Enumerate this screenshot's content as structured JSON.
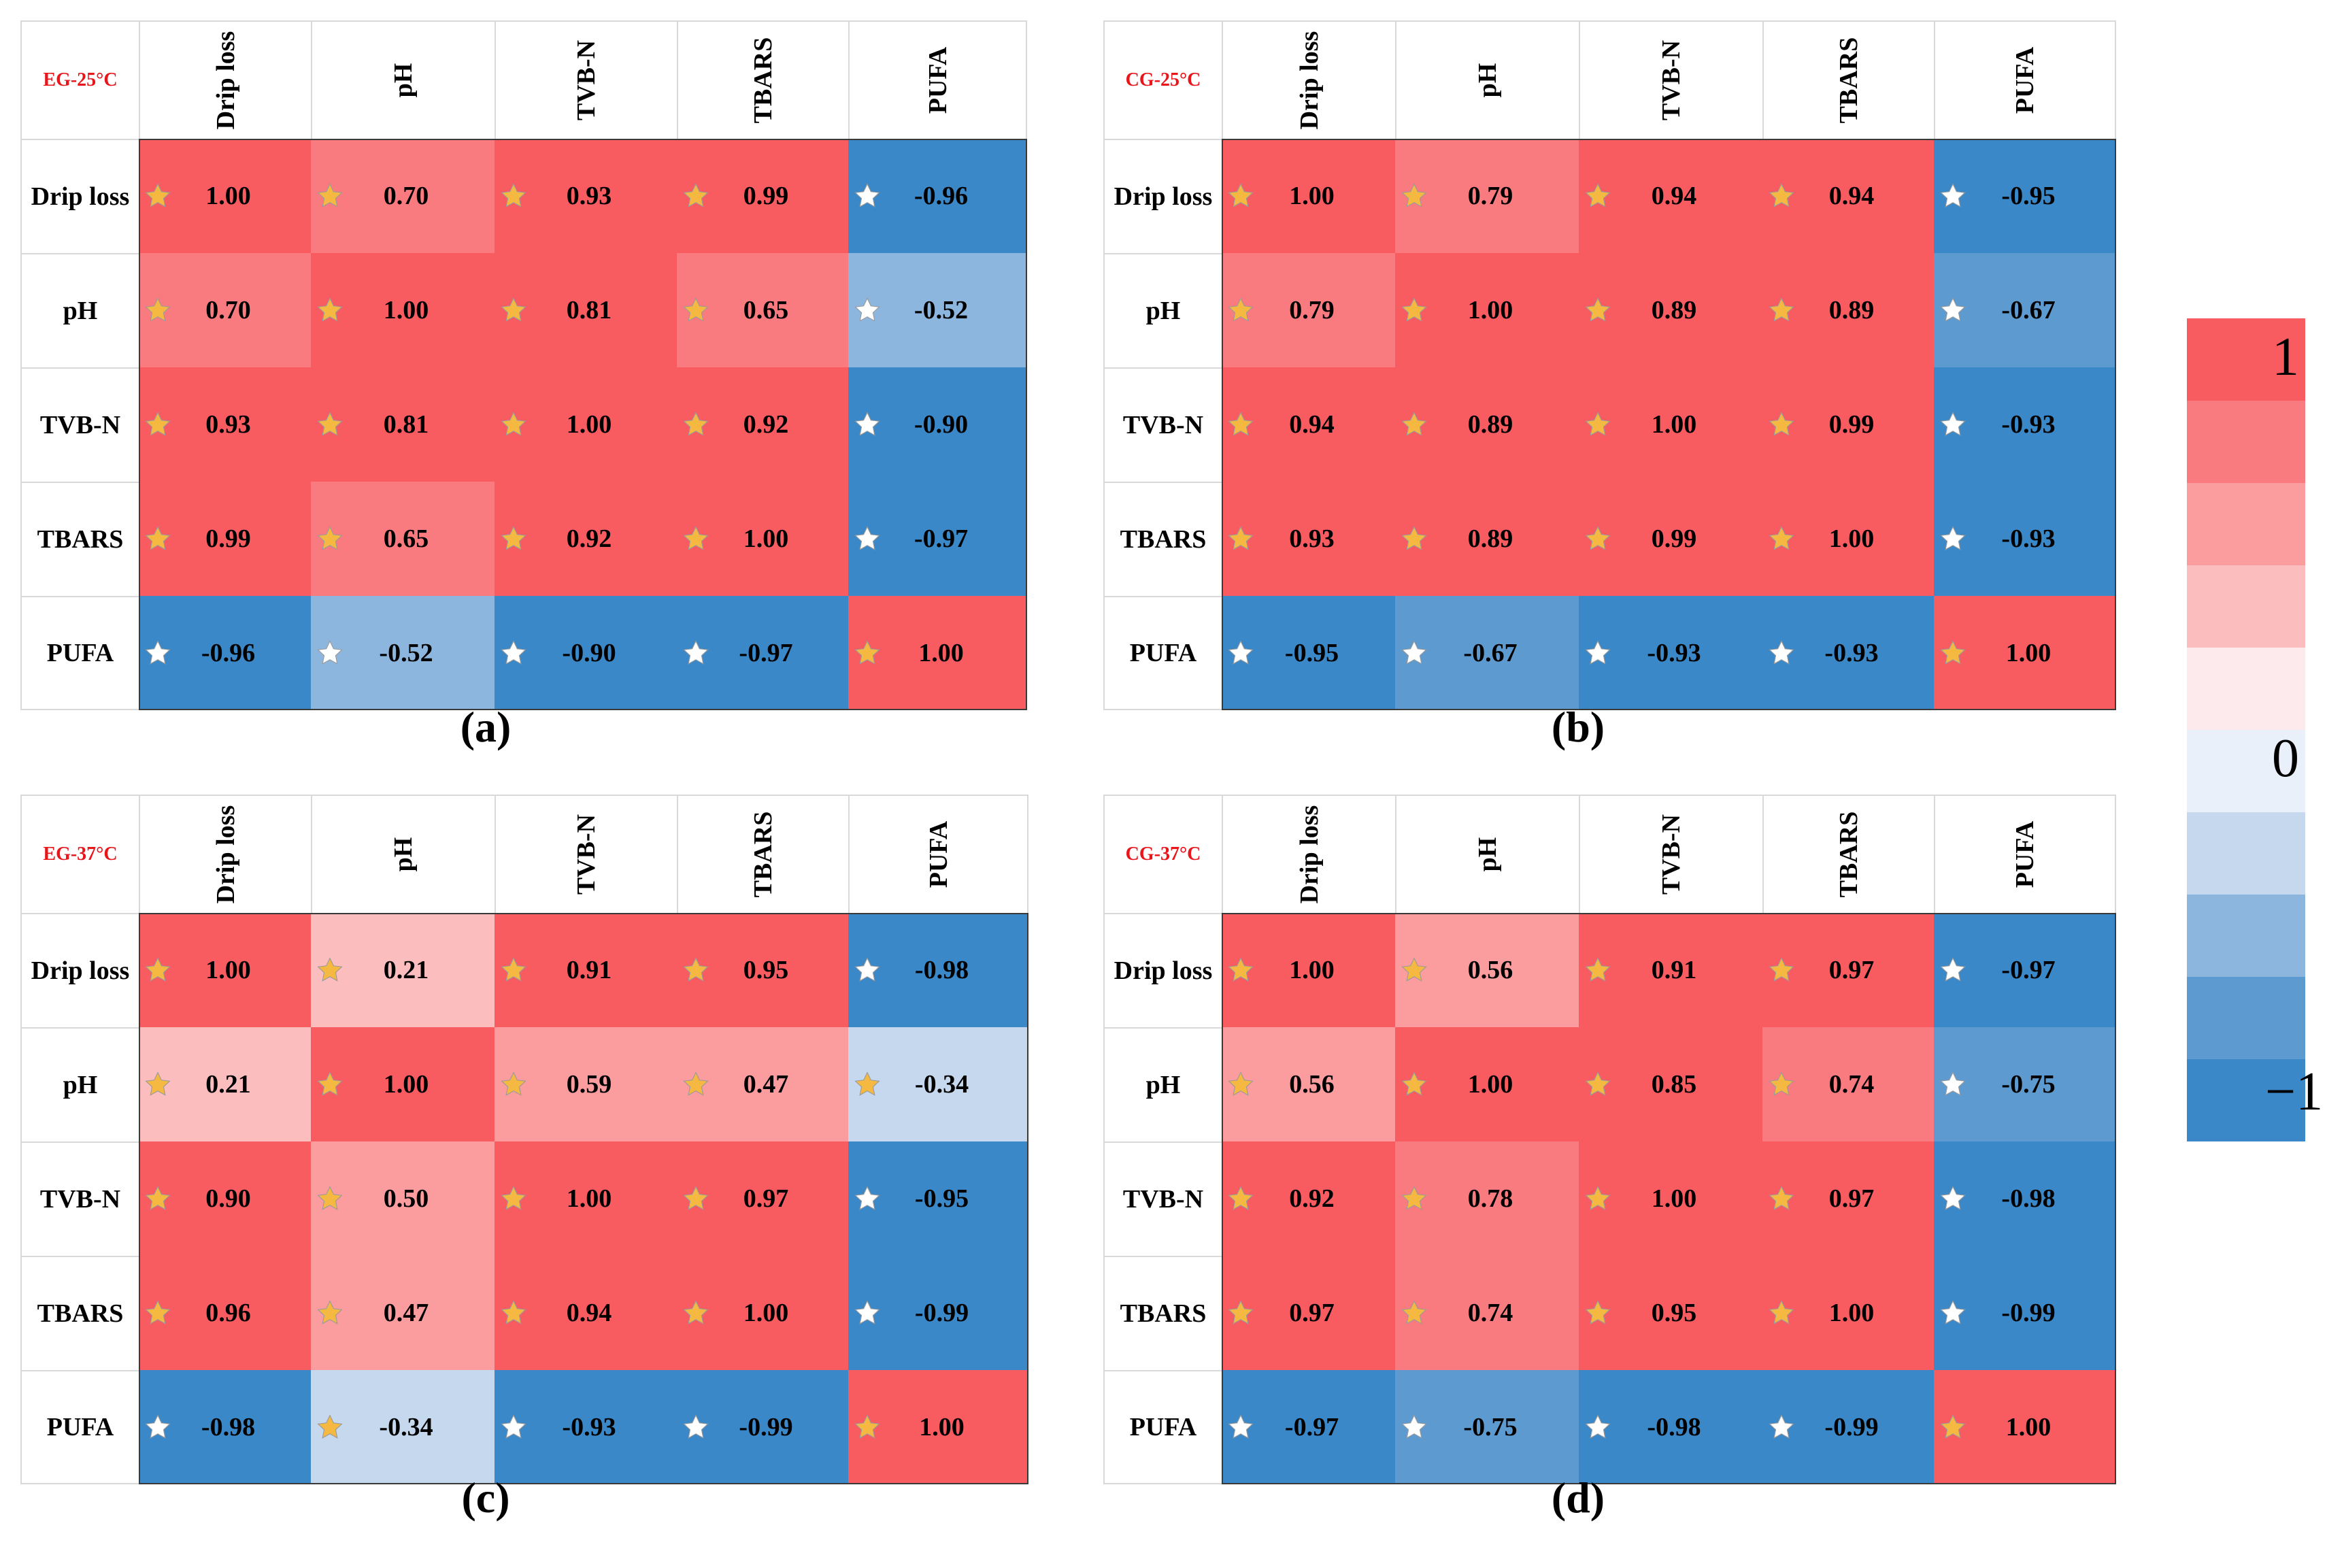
{
  "chart_data": [
    {
      "type": "heatmap",
      "panel_label": "(a)",
      "title": "EG-25°C",
      "columns": [
        "Drip loss",
        "pH",
        "TVB-N",
        "TBARS",
        "PUFA"
      ],
      "rows": [
        "Drip loss",
        "pH",
        "TVB-N",
        "TBARS",
        "PUFA"
      ],
      "values": [
        [
          1.0,
          0.7,
          0.93,
          0.99,
          -0.96
        ],
        [
          0.7,
          1.0,
          0.81,
          0.65,
          -0.52
        ],
        [
          0.93,
          0.81,
          1.0,
          0.92,
          -0.9
        ],
        [
          0.99,
          0.65,
          0.92,
          1.0,
          -0.97
        ],
        [
          -0.96,
          -0.52,
          -0.9,
          -0.97,
          1.0
        ]
      ],
      "labels": [
        [
          "1.00",
          "0.70",
          "0.93",
          "0.99",
          "-0.96"
        ],
        [
          "0.70",
          "1.00",
          "0.81",
          "0.65",
          "-0.52"
        ],
        [
          "0.93",
          "0.81",
          "1.00",
          "0.92",
          "-0.90"
        ],
        [
          "0.99",
          "0.65",
          "0.92",
          "1.00",
          "-0.97"
        ],
        [
          "-0.96",
          "-0.52",
          "-0.90",
          "-0.97",
          "1.00"
        ]
      ]
    },
    {
      "type": "heatmap",
      "panel_label": "(b)",
      "title": "CG-25°C",
      "columns": [
        "Drip loss",
        "pH",
        "TVB-N",
        "TBARS",
        "PUFA"
      ],
      "rows": [
        "Drip loss",
        "pH",
        "TVB-N",
        "TBARS",
        "PUFA"
      ],
      "values": [
        [
          1.0,
          0.79,
          0.94,
          0.94,
          -0.95
        ],
        [
          0.79,
          1.0,
          0.89,
          0.89,
          -0.67
        ],
        [
          0.94,
          0.89,
          1.0,
          0.99,
          -0.93
        ],
        [
          0.93,
          0.89,
          0.99,
          1.0,
          -0.93
        ],
        [
          -0.95,
          -0.67,
          -0.93,
          -0.93,
          1.0
        ]
      ],
      "labels": [
        [
          "1.00",
          "0.79",
          "0.94",
          "0.94",
          "-0.95"
        ],
        [
          "0.79",
          "1.00",
          "0.89",
          "0.89",
          "-0.67"
        ],
        [
          "0.94",
          "0.89",
          "1.00",
          "0.99",
          "-0.93"
        ],
        [
          "0.93",
          "0.89",
          "0.99",
          "1.00",
          "-0.93"
        ],
        [
          "-0.95",
          "-0.67",
          "-0.93",
          "-0.93",
          "1.00"
        ]
      ]
    },
    {
      "type": "heatmap",
      "panel_label": "(c)",
      "title": "EG-37°C",
      "columns": [
        "Drip loss",
        "pH",
        "TVB-N",
        "TBARS",
        "PUFA"
      ],
      "rows": [
        "Drip loss",
        "pH",
        "TVB-N",
        "TBARS",
        "PUFA"
      ],
      "values": [
        [
          1.0,
          0.21,
          0.91,
          0.95,
          -0.98
        ],
        [
          0.21,
          1.0,
          0.59,
          0.47,
          -0.34
        ],
        [
          0.9,
          0.5,
          1.0,
          0.97,
          -0.95
        ],
        [
          0.96,
          0.47,
          0.94,
          1.0,
          -0.99
        ],
        [
          -0.98,
          -0.34,
          -0.93,
          -0.99,
          1.0
        ]
      ],
      "labels": [
        [
          "1.00",
          "0.21",
          "0.91",
          "0.95",
          "-0.98"
        ],
        [
          "0.21",
          "1.00",
          "0.59",
          "0.47",
          "-0.34"
        ],
        [
          "0.90",
          "0.50",
          "1.00",
          "0.97",
          "-0.95"
        ],
        [
          "0.96",
          "0.47",
          "0.94",
          "1.00",
          "-0.99"
        ],
        [
          "-0.98",
          "-0.34",
          "-0.93",
          "-0.99",
          "1.00"
        ]
      ]
    },
    {
      "type": "heatmap",
      "panel_label": "(d)",
      "title": "CG-37°C",
      "columns": [
        "Drip loss",
        "pH",
        "TVB-N",
        "TBARS",
        "PUFA"
      ],
      "rows": [
        "Drip loss",
        "pH",
        "TVB-N",
        "TBARS",
        "PUFA"
      ],
      "values": [
        [
          1.0,
          0.56,
          0.91,
          0.97,
          -0.97
        ],
        [
          0.56,
          1.0,
          0.85,
          0.74,
          -0.75
        ],
        [
          0.92,
          0.78,
          1.0,
          0.97,
          -0.98
        ],
        [
          0.97,
          0.74,
          0.95,
          1.0,
          -0.99
        ],
        [
          -0.97,
          -0.75,
          -0.98,
          -0.99,
          1.0
        ]
      ],
      "labels": [
        [
          "1.00",
          "0.56",
          "0.91",
          "0.97",
          "-0.97"
        ],
        [
          "0.56",
          "1.00",
          "0.85",
          "0.74",
          "-0.75"
        ],
        [
          "0.92",
          "0.78",
          "1.00",
          "0.97",
          "-0.98"
        ],
        [
          "0.97",
          "0.74",
          "0.95",
          "1.00",
          "-0.99"
        ],
        [
          "-0.97",
          "-0.75",
          "-0.98",
          "-0.99",
          "1.00"
        ]
      ]
    }
  ],
  "legend": {
    "max_label": "1",
    "mid_label": "0",
    "min_label": "−1",
    "range": [
      -1,
      1
    ],
    "colors": [
      "#f85b60",
      "#fa7b7f",
      "#fb9c9f",
      "#fcbdbf",
      "#fdeaec",
      "#eaf0f9",
      "#c6d8ee",
      "#8cb6de",
      "#5d9ad0",
      "#3a88c8"
    ]
  },
  "colors": {
    "title": "#e8151b",
    "star_gold": "#f5b942",
    "star_white": "#ffffff"
  }
}
